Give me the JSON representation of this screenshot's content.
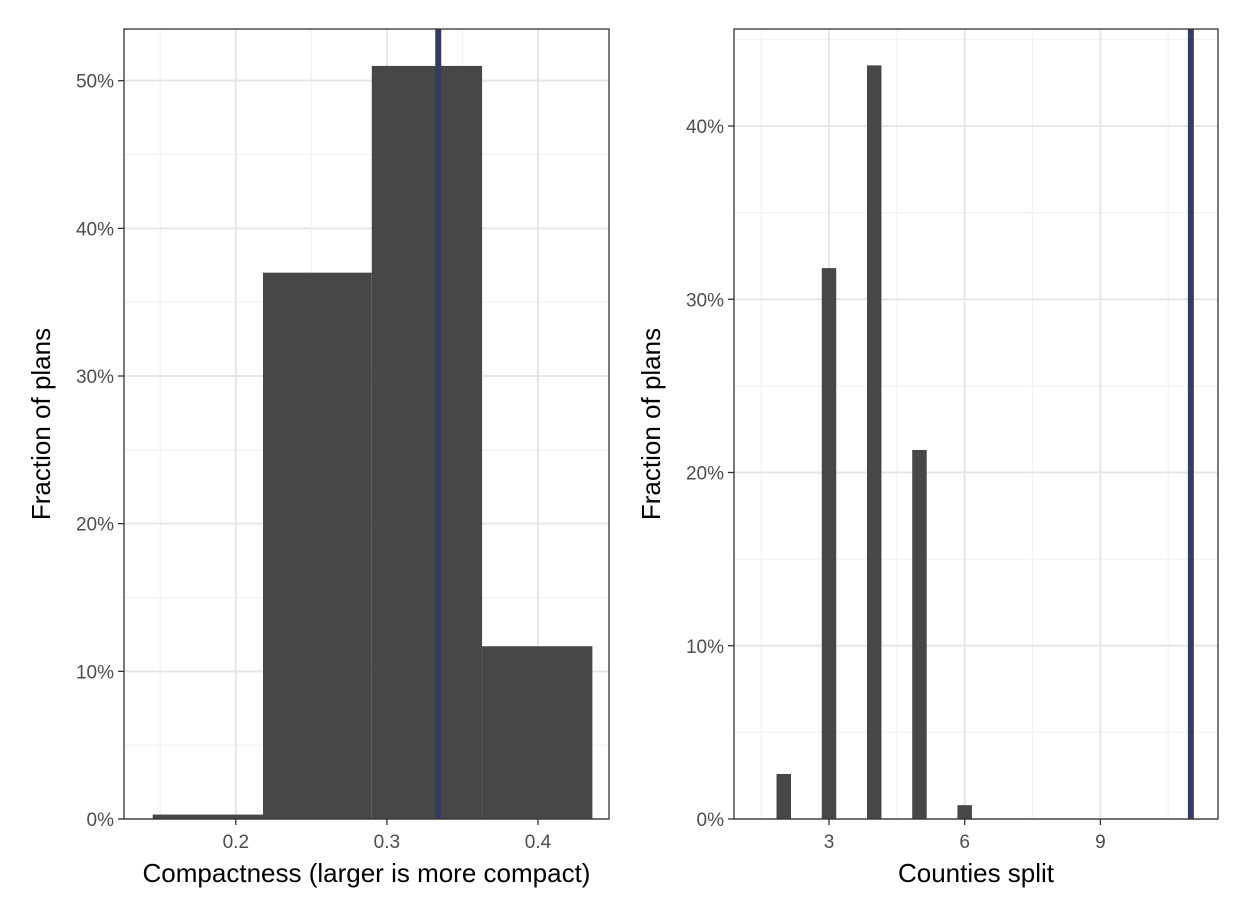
{
  "colors": {
    "bar": "#474747",
    "reference_line": "#353c60",
    "grid_major": "#e6e6e6",
    "grid_minor": "#f2f2f2",
    "panel_border": "#333333",
    "tick_text": "#4d4d4d"
  },
  "chart_data": [
    {
      "type": "bar",
      "subtype": "histogram",
      "xlabel": "Compactness (larger is more compact)",
      "ylabel": "Fraction of plans",
      "xlim": [
        0.126,
        0.447
      ],
      "ylim": [
        0,
        0.535
      ],
      "x_ticks": [
        0.2,
        0.3,
        0.4
      ],
      "x_tick_labels": [
        "0.2",
        "0.3",
        "0.4"
      ],
      "y_ticks": [
        0,
        0.1,
        0.2,
        0.3,
        0.4,
        0.5
      ],
      "y_tick_labels": [
        "0%",
        "10%",
        "20%",
        "30%",
        "40%",
        "50%"
      ],
      "bins": [
        {
          "x0": 0.145,
          "x1": 0.218,
          "value": 0.003
        },
        {
          "x0": 0.218,
          "x1": 0.29,
          "value": 0.37
        },
        {
          "x0": 0.29,
          "x1": 0.363,
          "value": 0.51
        },
        {
          "x0": 0.363,
          "x1": 0.436,
          "value": 0.117
        }
      ],
      "reference_line": 0.334,
      "grid": true
    },
    {
      "type": "bar",
      "subtype": "histogram",
      "xlabel": "Counties split",
      "ylabel": "Fraction of plans",
      "xlim": [
        0.9,
        11.6
      ],
      "ylim": [
        0,
        0.456
      ],
      "x_ticks": [
        3,
        6,
        9
      ],
      "x_tick_labels": [
        "3",
        "6",
        "9"
      ],
      "y_ticks": [
        0,
        0.1,
        0.2,
        0.3,
        0.4
      ],
      "y_tick_labels": [
        "0%",
        "10%",
        "20%",
        "30%",
        "40%"
      ],
      "bar_width": 0.32,
      "bars": [
        {
          "x": 2,
          "value": 0.026
        },
        {
          "x": 3,
          "value": 0.318
        },
        {
          "x": 4,
          "value": 0.435
        },
        {
          "x": 5,
          "value": 0.213
        },
        {
          "x": 6,
          "value": 0.008
        }
      ],
      "reference_line": 11,
      "grid": true
    }
  ]
}
